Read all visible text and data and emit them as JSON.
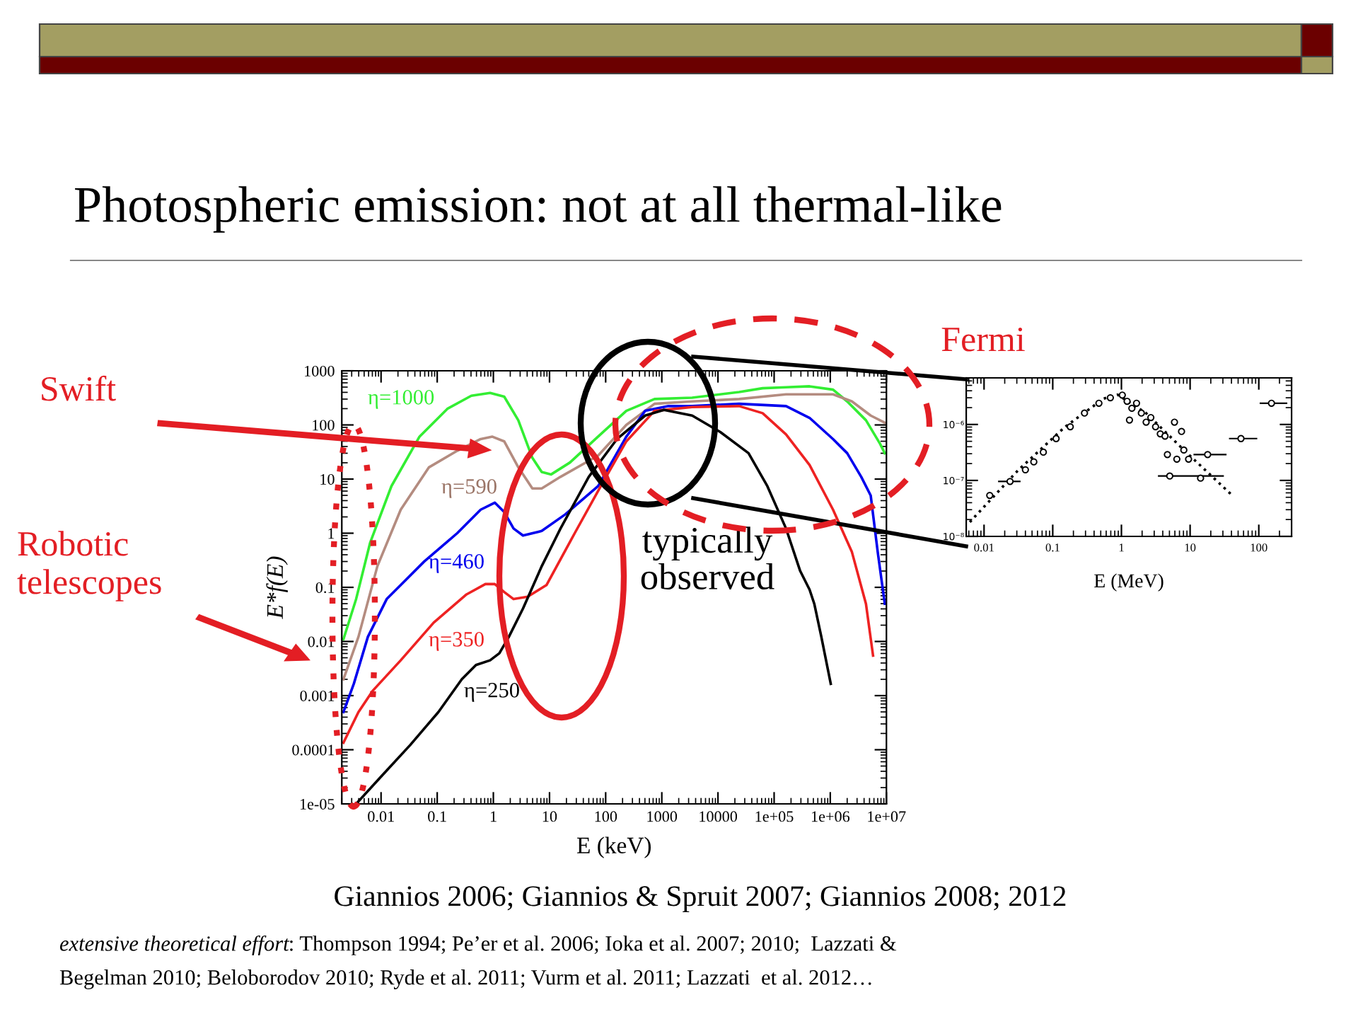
{
  "chart_data": [
    {
      "type": "line",
      "title": "Photospheric emission: not at all thermal-like",
      "xlabel": "E (keV)",
      "ylabel": "E*f(E)",
      "log": "xy",
      "xlim": [
        0.002,
        10000000
      ],
      "ylim": [
        1e-05,
        1000
      ],
      "xticks": [
        0.01,
        0.1,
        1,
        10,
        100,
        1000,
        10000,
        {
          "value": 100000,
          "label": "1e+05"
        },
        {
          "value": 1000000,
          "label": "1e+06"
        },
        {
          "value": 10000000,
          "label": "1e+07"
        }
      ],
      "yticks": [
        {
          "value": 1e-05,
          "label": "1e-05"
        },
        {
          "value": 0.0001,
          "label": "0.0001"
        },
        0.001,
        0.01,
        0.1,
        1,
        10,
        100,
        1000
      ],
      "series": [
        {
          "color": "#33ee33",
          "x": [
            0.00214,
            0.0036,
            0.0064,
            0.0153,
            0.0485,
            0.154,
            0.405,
            0.874,
            1.56,
            2.78,
            4.95,
            7.27,
            10.7,
            23.1,
            73.5,
            233,
            741,
            3470,
            23800,
            62400,
            163000,
            428000,
            1120000,
            2000000,
            4320000,
            7700000,
            9350000
          ],
          "values": [
            0.011,
            0.061,
            0.67,
            7.4,
            61,
            201,
            346,
            390,
            333,
            122,
            24.6,
            13.5,
            12.2,
            20.2,
            61,
            182,
            301,
            319,
            406,
            477,
            496,
            517,
            449,
            272,
            122,
            44.9,
            30
          ]
        },
        {
          "color": "#b48c80",
          "x": [
            0.00214,
            0.00396,
            0.0086,
            0.0224,
            0.0714,
            0.227,
            0.594,
            0.962,
            1.56,
            2.78,
            4.95,
            7.27,
            15.7,
            73.5,
            233,
            741,
            3470,
            23800,
            163000,
            1120000,
            2430000,
            5250000,
            9350000
          ],
          "values": [
            0.002,
            0.0122,
            0.246,
            2.72,
            16.5,
            33.3,
            54.8,
            60.7,
            49.7,
            16.5,
            6.7,
            6.7,
            11.0,
            27.2,
            100,
            246,
            272,
            301,
            367,
            367,
            272,
            149,
            110
          ]
        },
        {
          "color": "#0000ee",
          "x": [
            0.00214,
            0.00327,
            0.00583,
            0.0126,
            0.0224,
            0.0589,
            0.227,
            0.594,
            1.06,
            1.56,
            2.29,
            3.37,
            7.27,
            19.1,
            73.5,
            233,
            505,
            1320,
            3470,
            23800,
            163000,
            428000,
            1120000,
            2000000,
            3560000,
            5250000,
            7000000,
            9350000
          ],
          "values": [
            0.000497,
            0.00165,
            0.0122,
            0.0607,
            0.11,
            0.301,
            1.0,
            2.72,
            3.67,
            2.46,
            1.22,
            0.905,
            1.1,
            2.23,
            7.41,
            60.7,
            182,
            223,
            223,
            246,
            223,
            135,
            54.8,
            30.1,
            11.0,
            4.96,
            0.449,
            0.0497
          ]
        },
        {
          "color": "#ee2222",
          "x": [
            0.00214,
            0.00396,
            0.00706,
            0.0224,
            0.0865,
            0.333,
            0.721,
            1.06,
            1.56,
            2.29,
            4.08,
            8.83,
            28.1,
            73.5,
            233,
            741,
            3470,
            23800,
            62400,
            163000,
            428000,
            1120000,
            2430000,
            4320000,
            5780000
          ],
          "values": [
            0.000135,
            0.000497,
            0.00122,
            0.00449,
            0.0223,
            0.0741,
            0.115,
            0.115,
            0.0818,
            0.0607,
            0.067,
            0.11,
            1.0,
            6.07,
            49.7,
            182,
            214,
            223,
            165,
            67,
            18.2,
            2.72,
            0.449,
            0.0497,
            0.00548
          ]
        },
        {
          "color": "#000000",
          "x": [
            0.0036,
            0.0104,
            0.033,
            0.105,
            0.275,
            0.49,
            0.874,
            1.28,
            1.89,
            3.37,
            7.27,
            15.7,
            50,
            159,
            505,
            1090,
            3470,
            11000,
            35000,
            75700,
            163000,
            291000,
            428000,
            519000,
            693000,
            1020000
          ],
          "values": [
            1e-05,
            3.33e-05,
            0.000122,
            0.000497,
            0.00201,
            0.00367,
            0.00449,
            0.00607,
            0.0122,
            0.0406,
            0.246,
            1.22,
            11.0,
            54.8,
            149,
            190,
            149,
            74,
            30.1,
            7.41,
            1.22,
            0.201,
            0.0906,
            0.0497,
            0.0122,
            0.00165
          ]
        }
      ],
      "annotations": [
        "η=1000",
        "η=590",
        "η=460",
        "η=350",
        "η=250",
        "Swift",
        "Fermi",
        "Robotic\ntelescopes",
        "typically\nobserved",
        "Giannios 2006; Giannios & Spruit 2007; Giannios 2008; 2012",
        "extensive theoretical effort",
        ": Thompson 1994; Pe’er et al. 2006; Ioka et al. 2007; 2010;  Lazzati &",
        "Begelman 2010; Beloborodov 2010; Ryde et al. 2011; Vurm et al. 2011; Lazzati  et al. 2012…"
      ]
    },
    {
      "type": "line",
      "xlabel": "E (MeV)",
      "log": "xy",
      "xlim": [
        0.0055,
        300
      ],
      "ylim": [
        1e-08,
        6.8e-06
      ],
      "xticks": [
        0.01,
        0.1,
        1,
        10,
        100
      ],
      "yticks": [
        {
          "value": 1e-08,
          "label": "10⁻⁸"
        },
        {
          "value": 1e-07,
          "label": "10⁻⁷"
        },
        {
          "value": 1e-06,
          "label": "10⁻⁶"
        }
      ],
      "series": [
        {
          "type": "line",
          "line_style": "dotted",
          "color": "#000000",
          "x": [
            0.0062,
            0.031,
            0.15,
            0.55,
            0.88,
            2.28,
            8.1,
            39.8
          ],
          "values": [
            1.8e-08,
            1.5e-07,
            9e-07,
            2.9e-06,
            3.4e-06,
            1.6e-06,
            3.5e-07,
            5.6e-08
          ]
        },
        {
          "type": "scatter",
          "marker": "circle",
          "color": "#000000",
          "x": [
            0.0121,
            0.0239,
            0.04,
            0.053,
            0.073,
            0.112,
            0.18,
            0.29,
            0.47,
            0.69,
            1.03,
            1.21,
            1.42,
            1.31,
            1.66,
            1.95,
            2.29,
            2.68,
            3.14,
            3.68,
            4.31,
            4.67,
            5.92,
            6.41,
            7.5,
            8.1,
            9.5,
            18,
            55,
            153,
            5.05,
            14.2
          ],
          "values": [
            5.4e-08,
            9.6e-08,
            1.55e-07,
            2.15e-07,
            3.2e-07,
            5.6e-07,
            9.1e-07,
            1.6e-06,
            2.4e-06,
            3e-06,
            3.35e-06,
            2.6e-06,
            1.95e-06,
            1.2e-06,
            2.4e-06,
            1.6e-06,
            1.1e-06,
            1.33e-06,
            9.1e-07,
            6.8e-07,
            6.2e-07,
            2.9e-07,
            1.1e-06,
            2.4e-07,
            7.5e-07,
            3.5e-07,
            2.4e-07,
            2.9e-07,
            5.6e-07,
            2.4e-06,
            1.2e-07,
            1.1e-07
          ],
          "xerrors": [
            null,
            [
              0.016,
              0.034
            ],
            null,
            null,
            null,
            null,
            null,
            null,
            null,
            null,
            null,
            null,
            null,
            null,
            null,
            null,
            null,
            null,
            null,
            null,
            null,
            null,
            null,
            null,
            null,
            null,
            null,
            [
              11.2,
              33.9
            ],
            [
              36.8,
              95
            ],
            [
              103,
              260
            ],
            [
              3.4,
              31
            ],
            null
          ]
        }
      ]
    }
  ]
}
